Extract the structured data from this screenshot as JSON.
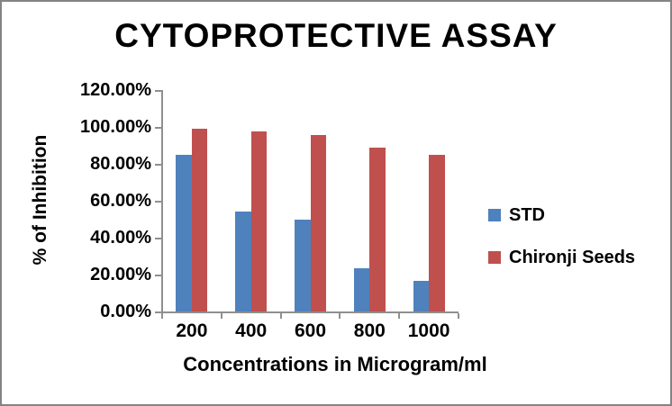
{
  "window": {
    "background_color": "#ffffff",
    "frame_color": "#848484",
    "axis_color": "#8f8f8f",
    "text_color": "#000000"
  },
  "chart_data": {
    "type": "bar",
    "title": "CYTOPROTECTIVE ASSAY",
    "xlabel": "Concentrations in Microgram/ml",
    "ylabel": "% of Inhibition",
    "categories": [
      "200",
      "400",
      "600",
      "800",
      "1000"
    ],
    "series": [
      {
        "name": "STD",
        "color": "#4f81bd",
        "values": [
          85,
          54,
          50,
          23.5,
          16.5
        ]
      },
      {
        "name": "Chironji Seeds",
        "color": "#c0504d",
        "values": [
          99,
          97.5,
          95.5,
          89,
          85
        ]
      }
    ],
    "ylim": [
      0,
      120
    ],
    "ytick_step": 20,
    "ytick_labels": [
      "0.00%",
      "20.00%",
      "40.00%",
      "60.00%",
      "80.00%",
      "100.00%",
      "120.00%"
    ],
    "grid": false,
    "legend_position": "right"
  }
}
